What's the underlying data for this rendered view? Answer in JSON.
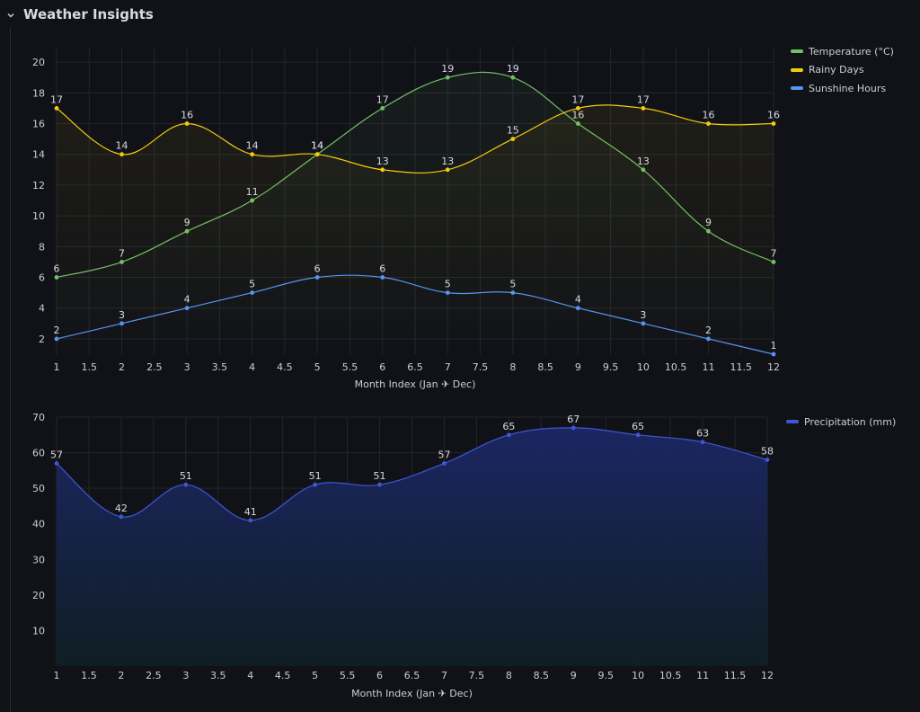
{
  "row": {
    "title": "Weather Insights",
    "collapse_icon": "chevron-down-icon"
  },
  "colors": {
    "temperature": "#73bf69",
    "rainy": "#f2cc0c",
    "sunshine": "#5794f2",
    "precipitation": "#3d57d6",
    "grid": "#24262c",
    "tick": "#ccccdc"
  },
  "chart_data": [
    {
      "type": "line",
      "xlabel": "Month Index (Jan ✈ Dec)",
      "x_ticks": [
        "1",
        "1.5",
        "2",
        "2.5",
        "3",
        "3.5",
        "4",
        "4.5",
        "5",
        "5.5",
        "6",
        "6.5",
        "7",
        "7.5",
        "8",
        "8.5",
        "9",
        "9.5",
        "10",
        "10.5",
        "11",
        "11.5",
        "12"
      ],
      "y_ticks": [
        "2",
        "4",
        "6",
        "8",
        "10",
        "12",
        "14",
        "16",
        "18",
        "20"
      ],
      "xlim": [
        1,
        12
      ],
      "ylim": [
        1,
        21
      ],
      "grid": true,
      "legend_position": "right",
      "x": [
        1,
        2,
        3,
        4,
        5,
        6,
        7,
        8,
        9,
        10,
        11,
        12
      ],
      "series": [
        {
          "name": "Temperature (°C)",
          "values": [
            6,
            7,
            9,
            11,
            14,
            17,
            19,
            19,
            16,
            13,
            9,
            7
          ]
        },
        {
          "name": "Rainy Days",
          "values": [
            17,
            14,
            16,
            14,
            14,
            13,
            13,
            15,
            17,
            17,
            16,
            16
          ]
        },
        {
          "name": "Sunshine Hours",
          "values": [
            2,
            3,
            4,
            5,
            6,
            6,
            5,
            5,
            4,
            3,
            2,
            1
          ]
        }
      ]
    },
    {
      "type": "area",
      "xlabel": "Month Index (Jan ✈ Dec)",
      "x_ticks": [
        "1",
        "1.5",
        "2",
        "2.5",
        "3",
        "3.5",
        "4",
        "4.5",
        "5",
        "5.5",
        "6",
        "6.5",
        "7",
        "7.5",
        "8",
        "8.5",
        "9",
        "9.5",
        "10",
        "10.5",
        "11",
        "11.5",
        "12"
      ],
      "y_ticks": [
        "10",
        "20",
        "30",
        "40",
        "50",
        "60",
        "70"
      ],
      "xlim": [
        1,
        12
      ],
      "ylim": [
        0,
        70
      ],
      "grid": true,
      "legend_position": "right",
      "x": [
        1,
        2,
        3,
        4,
        5,
        6,
        7,
        8,
        9,
        10,
        11,
        12
      ],
      "series": [
        {
          "name": "Precipitation (mm)",
          "values": [
            57,
            42,
            51,
            41,
            51,
            51,
            57,
            65,
            67,
            65,
            63,
            58
          ]
        }
      ]
    }
  ]
}
